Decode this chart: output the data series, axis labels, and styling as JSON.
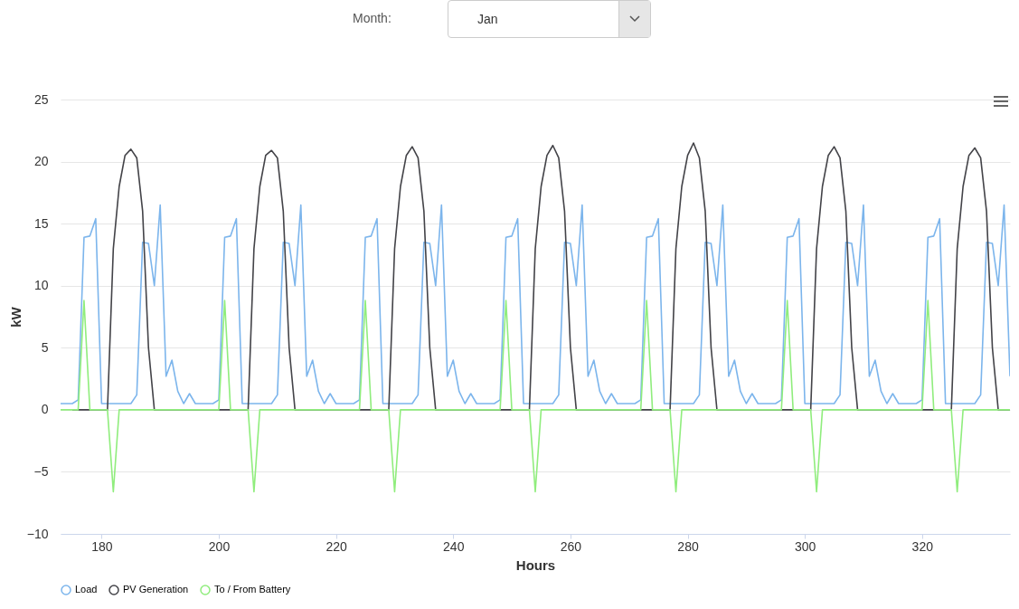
{
  "chart_data": {
    "type": "line",
    "annotations": [
      "Month:",
      "Jan"
    ],
    "xlabel": "Hours",
    "ylabel": "kW",
    "x": [
      173,
      174,
      175,
      176,
      177,
      178,
      179,
      180,
      181,
      182,
      183,
      184,
      185,
      186,
      187,
      188,
      189,
      190,
      191,
      192,
      193,
      194,
      195,
      196,
      197,
      198,
      199,
      200,
      201,
      202,
      203,
      204,
      205,
      206,
      207,
      208,
      209,
      210,
      211,
      212,
      213,
      214,
      215,
      216,
      217,
      218,
      219,
      220,
      221,
      222,
      223,
      224,
      225,
      226,
      227,
      228,
      229,
      230,
      231,
      232,
      233,
      234,
      235,
      236,
      237,
      238,
      239,
      240,
      241,
      242,
      243,
      244,
      245,
      246,
      247,
      248,
      249,
      250,
      251,
      252,
      253,
      254,
      255,
      256,
      257,
      258,
      259,
      260,
      261,
      262,
      263,
      264,
      265,
      266,
      267,
      268,
      269,
      270,
      271,
      272,
      273,
      274,
      275,
      276,
      277,
      278,
      279,
      280,
      281,
      282,
      283,
      284,
      285,
      286,
      287,
      288,
      289,
      290,
      291,
      292,
      293,
      294,
      295,
      296,
      297,
      298,
      299,
      300,
      301,
      302,
      303,
      304,
      305,
      306,
      307,
      308,
      309,
      310,
      311,
      312,
      313,
      314,
      315,
      316,
      317,
      318,
      319,
      320,
      321,
      322,
      323,
      324,
      325,
      326,
      327,
      328,
      329,
      330,
      331,
      332,
      333,
      334,
      335
    ],
    "series": [
      {
        "name": "Load",
        "color": "#7cb5ec",
        "values": [
          0.5,
          0.5,
          0.5,
          0.8,
          13.9,
          14,
          15.4,
          0.5,
          0.5,
          0.5,
          0.5,
          0.5,
          0.5,
          1.2,
          13.5,
          13.4,
          10,
          16.5,
          2.7,
          4,
          1.5,
          0.5,
          1.3,
          0.5,
          0.5,
          0.5,
          0.5,
          0.8,
          13.9,
          14,
          15.4,
          0.5,
          0.5,
          0.5,
          0.5,
          0.5,
          0.5,
          1.2,
          13.5,
          13.4,
          10,
          16.5,
          2.7,
          4,
          1.5,
          0.5,
          1.3,
          0.5,
          0.5,
          0.5,
          0.5,
          0.8,
          13.9,
          14,
          15.4,
          0.5,
          0.5,
          0.5,
          0.5,
          0.5,
          0.5,
          1.2,
          13.5,
          13.4,
          10,
          16.5,
          2.7,
          4,
          1.5,
          0.5,
          1.3,
          0.5,
          0.5,
          0.5,
          0.5,
          0.8,
          13.9,
          14,
          15.4,
          0.5,
          0.5,
          0.5,
          0.5,
          0.5,
          0.5,
          1.2,
          13.5,
          13.4,
          10,
          16.5,
          2.7,
          4,
          1.5,
          0.5,
          1.3,
          0.5,
          0.5,
          0.5,
          0.5,
          0.8,
          13.9,
          14,
          15.4,
          0.5,
          0.5,
          0.5,
          0.5,
          0.5,
          0.5,
          1.2,
          13.5,
          13.4,
          10,
          16.5,
          2.7,
          4,
          1.5,
          0.5,
          1.3,
          0.5,
          0.5,
          0.5,
          0.5,
          0.8,
          13.9,
          14,
          15.4,
          0.5,
          0.5,
          0.5,
          0.5,
          0.5,
          0.5,
          1.2,
          13.5,
          13.4,
          10,
          16.5,
          2.7,
          4,
          1.5,
          0.5,
          1.3,
          0.5,
          0.5,
          0.5,
          0.5,
          0.8,
          13.9,
          14,
          15.4,
          0.5,
          0.5,
          0.5,
          0.5,
          0.5,
          0.5,
          1.2,
          13.5,
          13.4,
          10,
          16.5,
          2.7
        ]
      },
      {
        "name": "PV Generation",
        "color": "#434348",
        "values": [
          null,
          null,
          0,
          0,
          0,
          0,
          0,
          0,
          0,
          13,
          18,
          20.5,
          21,
          20.3,
          16,
          5,
          0,
          0,
          0,
          0,
          0,
          0,
          0,
          0,
          0,
          0,
          0,
          0,
          0,
          0,
          0,
          0,
          0,
          13,
          18,
          20.5,
          20.9,
          20.3,
          16,
          5,
          0,
          0,
          0,
          0,
          0,
          0,
          0,
          0,
          0,
          0,
          0,
          0,
          0,
          0,
          0,
          0,
          0,
          13,
          18,
          20.5,
          21.2,
          20.3,
          16,
          5,
          0,
          0,
          0,
          0,
          0,
          0,
          0,
          0,
          0,
          0,
          0,
          0,
          0,
          0,
          0,
          0,
          0,
          13,
          18,
          20.5,
          21.3,
          20.3,
          16,
          5,
          0,
          0,
          0,
          0,
          0,
          0,
          0,
          0,
          0,
          0,
          0,
          0,
          0,
          0,
          0,
          0,
          0,
          13,
          18,
          20.5,
          21.5,
          20.3,
          16,
          5,
          0,
          0,
          0,
          0,
          0,
          0,
          0,
          0,
          0,
          0,
          0,
          0,
          0,
          0,
          0,
          0,
          0,
          13,
          18,
          20.5,
          21.2,
          20.3,
          16,
          5,
          0,
          0,
          0,
          0,
          0,
          0,
          0,
          0,
          0,
          0,
          0,
          0,
          0,
          0,
          0,
          0,
          0,
          13,
          18,
          20.5,
          21.1,
          20.3,
          16,
          5,
          0,
          0,
          0
        ]
      },
      {
        "name": "To / From Battery",
        "color": "#90ed7d",
        "values": [
          0,
          0,
          0,
          0,
          8.8,
          0,
          0,
          0,
          0,
          -6.6,
          0,
          0,
          0,
          0,
          0,
          0,
          0,
          0,
          0,
          0,
          0,
          0,
          0,
          0,
          0,
          0,
          0,
          0,
          8.8,
          0,
          0,
          0,
          0,
          -6.6,
          0,
          0,
          0,
          0,
          0,
          0,
          0,
          0,
          0,
          0,
          0,
          0,
          0,
          0,
          0,
          0,
          0,
          0,
          8.8,
          0,
          0,
          0,
          0,
          -6.6,
          0,
          0,
          0,
          0,
          0,
          0,
          0,
          0,
          0,
          0,
          0,
          0,
          0,
          0,
          0,
          0,
          0,
          0,
          8.8,
          0,
          0,
          0,
          0,
          -6.6,
          0,
          0,
          0,
          0,
          0,
          0,
          0,
          0,
          0,
          0,
          0,
          0,
          0,
          0,
          0,
          0,
          0,
          0,
          8.8,
          0,
          0,
          0,
          0,
          -6.6,
          0,
          0,
          0,
          0,
          0,
          0,
          0,
          0,
          0,
          0,
          0,
          0,
          0,
          0,
          0,
          0,
          0,
          0,
          8.8,
          0,
          0,
          0,
          0,
          -6.6,
          0,
          0,
          0,
          0,
          0,
          0,
          0,
          0,
          0,
          0,
          0,
          0,
          0,
          0,
          0,
          0,
          0,
          0,
          8.8,
          0,
          0,
          0,
          0,
          -6.6,
          0,
          0,
          0,
          0,
          0,
          0,
          0,
          0,
          0
        ]
      }
    ],
    "xlim": [
      173,
      335
    ],
    "xticks": [
      180,
      200,
      220,
      240,
      260,
      280,
      300,
      320
    ],
    "ylim": [
      -10,
      25
    ],
    "yticks": [
      -10,
      -5,
      0,
      5,
      10,
      15,
      20,
      25
    ],
    "grid": "y",
    "legend": "bottom",
    "line_style": "solid"
  }
}
